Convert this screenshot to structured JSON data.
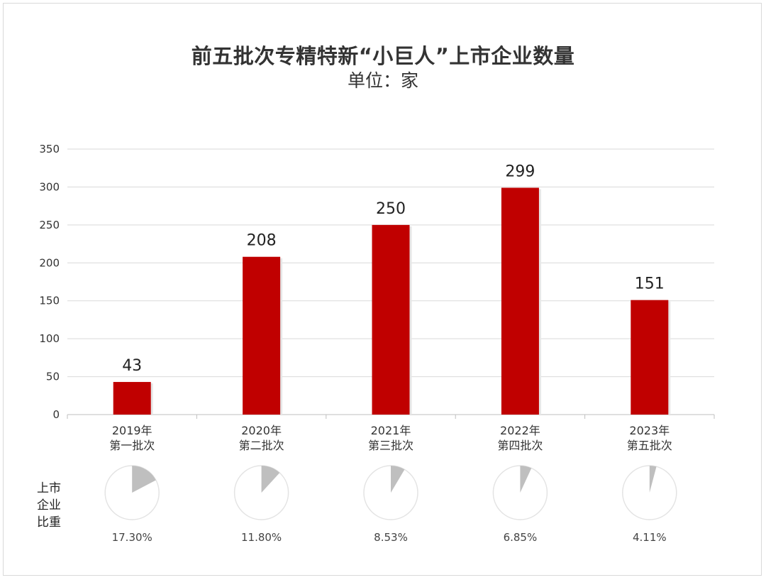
{
  "chart_data": {
    "type": "bar",
    "title": "前五批次专精特新“小巨人”上市企业数量",
    "subtitle": "单位：家",
    "categories": [
      [
        "2019年",
        "第一批次"
      ],
      [
        "2020年",
        "第二批次"
      ],
      [
        "2021年",
        "第三批次"
      ],
      [
        "2022年",
        "第四批次"
      ],
      [
        "2023年",
        "第五批次"
      ]
    ],
    "values": [
      43,
      208,
      250,
      299,
      151
    ],
    "ylim": [
      0,
      350
    ],
    "yticks": [
      0,
      50,
      100,
      150,
      200,
      250,
      300,
      350
    ],
    "grid": true,
    "bar_color": "#c00000",
    "pie_label": "上市企业比重",
    "pie_label_lines": [
      "上市",
      "企业",
      "比重"
    ],
    "pie_values": [
      17.3,
      11.8,
      8.53,
      6.85,
      4.11
    ],
    "pie_value_labels": [
      "17.30%",
      "11.80%",
      "8.53%",
      "6.85%",
      "4.11%"
    ],
    "pie_color": "#bfbfbf"
  }
}
